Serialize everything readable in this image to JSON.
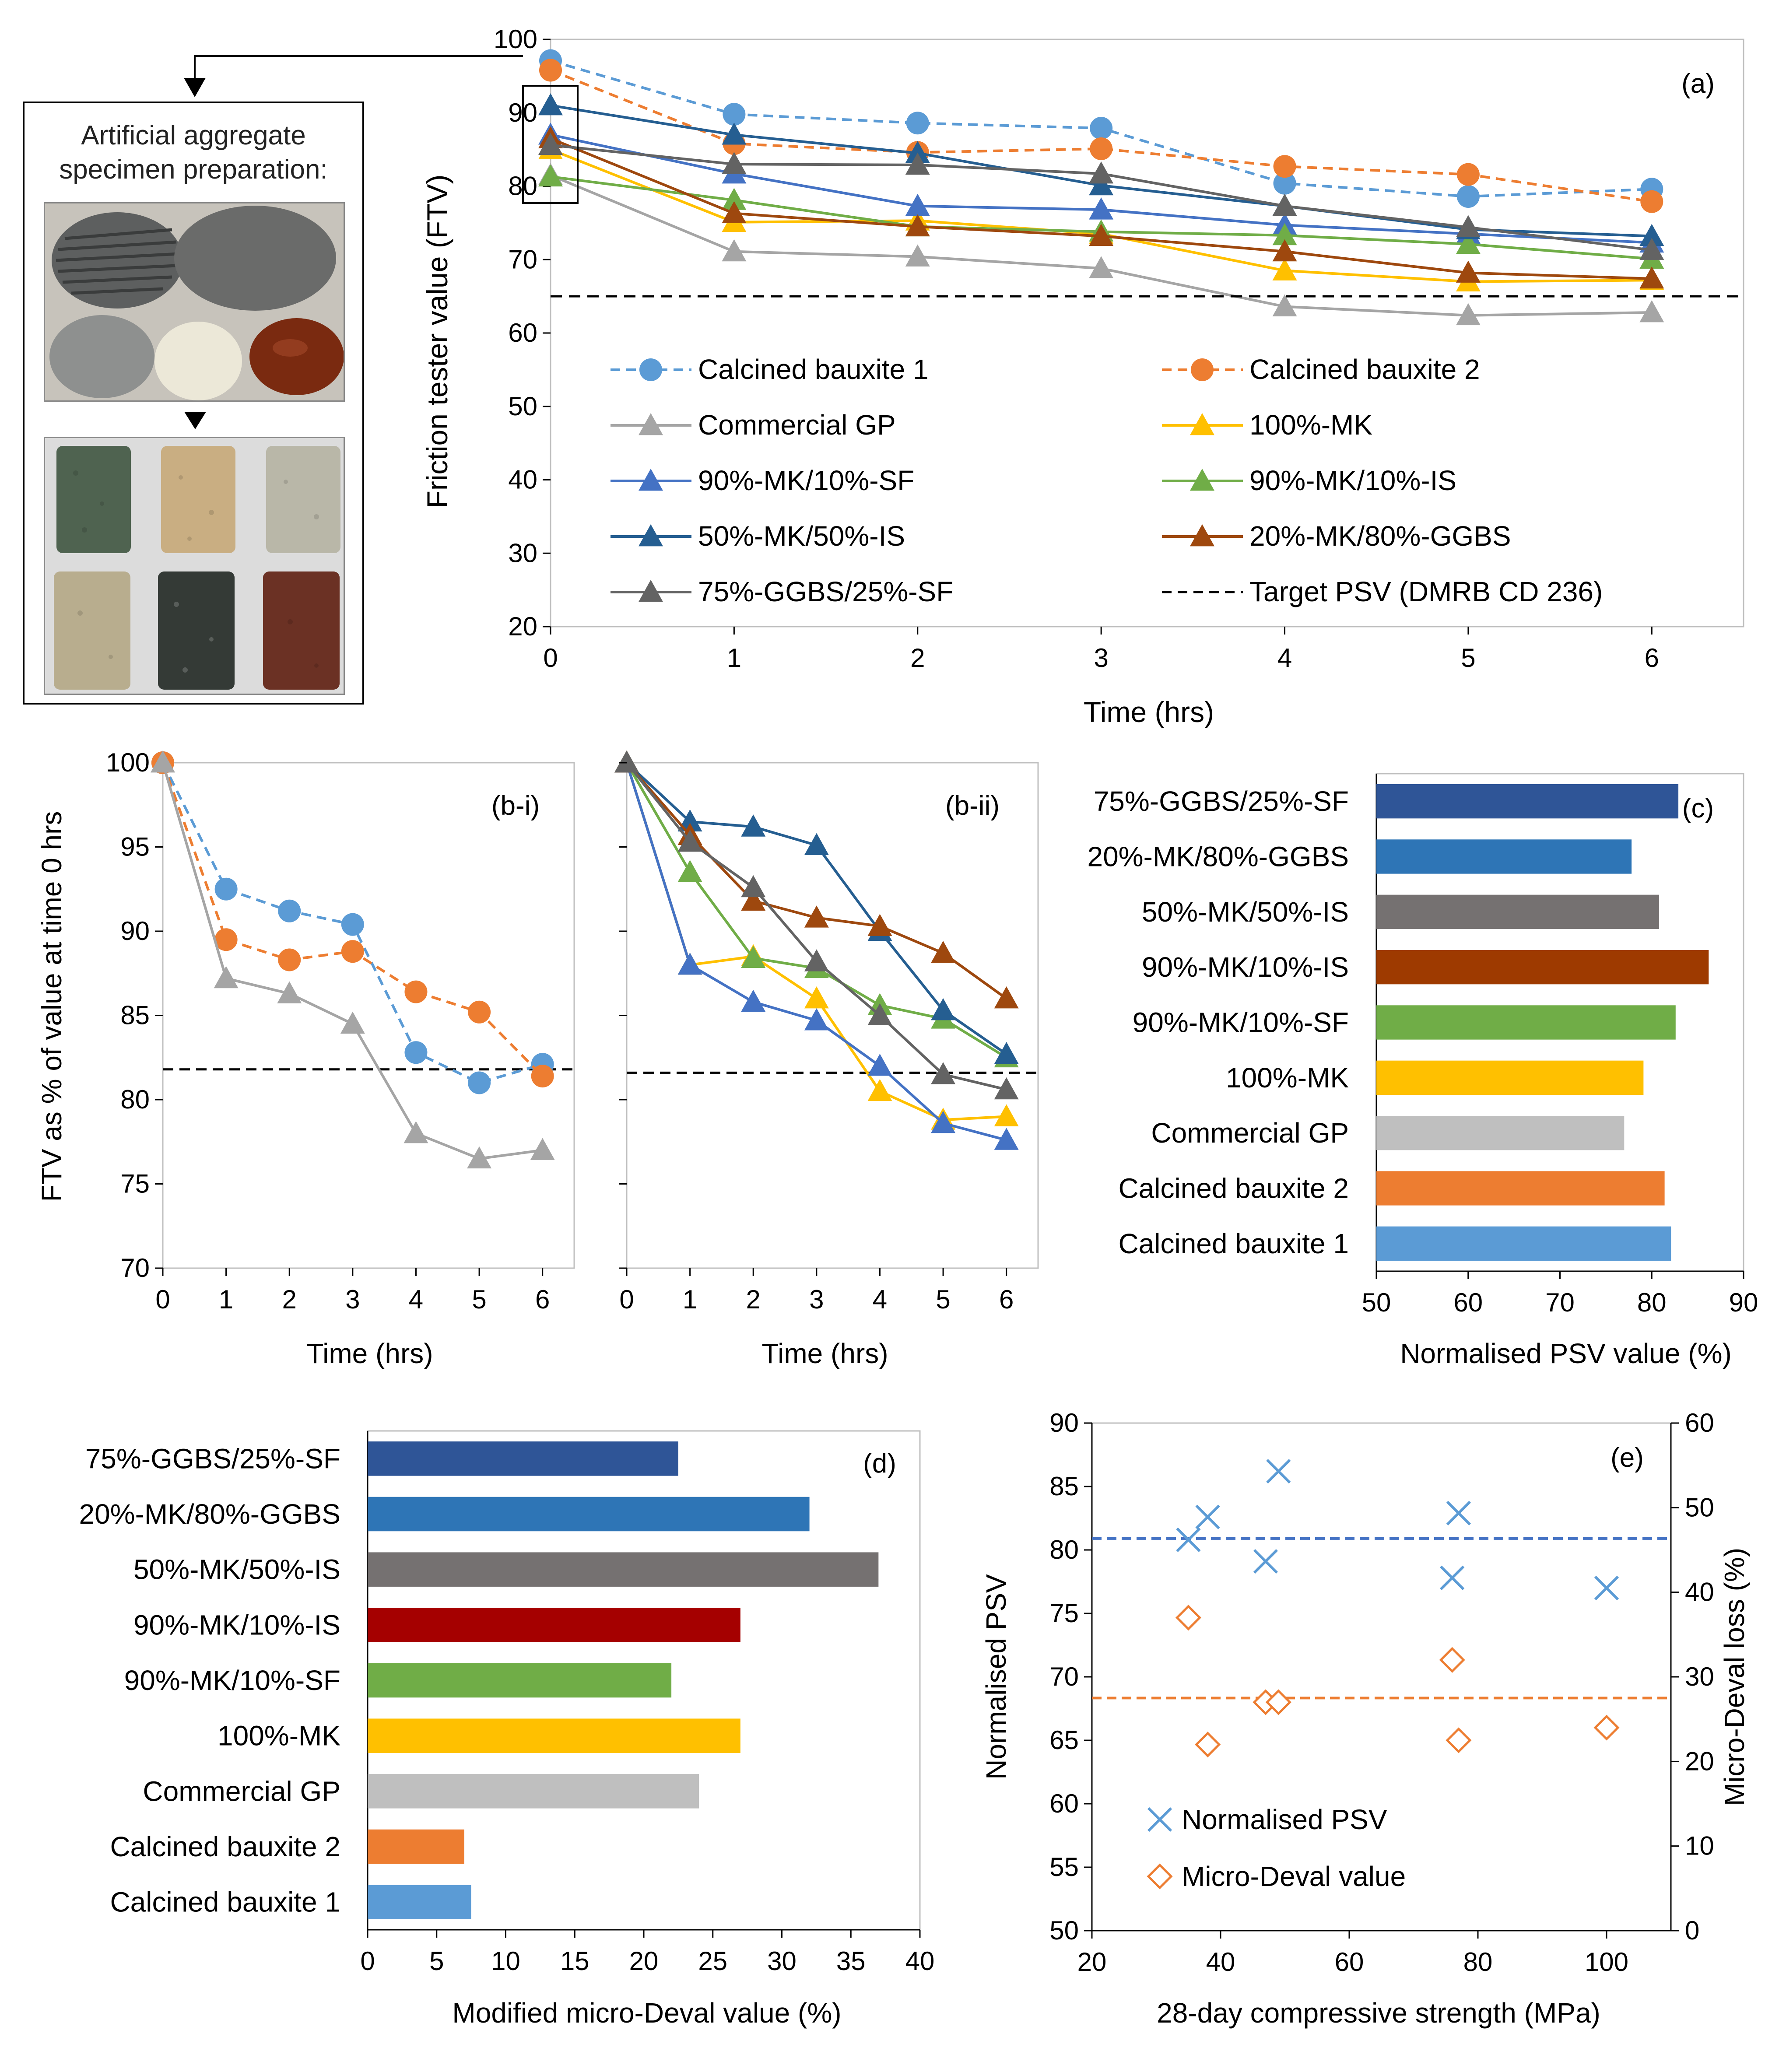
{
  "panel_a": {
    "label": "(a)",
    "xlabel": "Time (hrs)",
    "ylabel": "Friction tester value (FTV)",
    "xticks": [
      "0",
      "1",
      "2",
      "3",
      "4",
      "5",
      "6"
    ],
    "yticks": [
      "20",
      "30",
      "40",
      "50",
      "60",
      "70",
      "80",
      "90",
      "100"
    ]
  },
  "photo_panel": {
    "title_line1": "Artificial aggregate",
    "title_line2": "specimen preparation:"
  },
  "panel_b_i": {
    "label": "(b-i)",
    "xlabel": "Time (hrs)",
    "ylabel": "FTV as % of value at time 0 hrs",
    "xticks": [
      "0",
      "1",
      "2",
      "3",
      "4",
      "5",
      "6"
    ],
    "yticks": [
      "70",
      "75",
      "80",
      "85",
      "90",
      "95",
      "100"
    ]
  },
  "panel_b_ii": {
    "label": "(b-ii)",
    "xlabel": "Time (hrs)",
    "xticks": [
      "0",
      "1",
      "2",
      "3",
      "4",
      "5",
      "6"
    ]
  },
  "panel_c": {
    "label": "(c)",
    "xlabel": "Normalised PSV value (%)",
    "xticks": [
      "50",
      "60",
      "70",
      "80",
      "90"
    ]
  },
  "panel_d": {
    "label": "(d)",
    "xlabel": "Modified micro-Deval value (%)",
    "xticks": [
      "0",
      "5",
      "10",
      "15",
      "20",
      "25",
      "30",
      "35",
      "40"
    ]
  },
  "panel_e": {
    "label": "(e)",
    "xlabel": "28-day compressive strength (MPa)",
    "ylabel_left": "Normalised PSV",
    "ylabel_right": "Micro-Deval loss (%)",
    "xticks": [
      "20",
      "40",
      "60",
      "80",
      "100"
    ],
    "yticks_left": [
      "50",
      "55",
      "60",
      "65",
      "70",
      "75",
      "80",
      "85",
      "90"
    ],
    "yticks_right": [
      "0",
      "10",
      "20",
      "30",
      "40",
      "50",
      "60"
    ],
    "legend": [
      "Normalised PSV",
      "Micro-Deval value"
    ]
  },
  "colors": {
    "cb1": "#5b9bd5",
    "cb2": "#ed7d31",
    "gp": "#a5a5a5",
    "mk": "#ffc000",
    "mksf": "#4472c4",
    "mkis": "#70ad47",
    "mk50is": "#255e91",
    "mkggbs": "#9e480e",
    "ggbssf": "#636363",
    "bar_ggbssf": "#2f5597",
    "bar_mkggbs": "#2e75b6",
    "bar_mk50is": "#757171",
    "bar_mkis_c": "#9e3a00",
    "bar_mkis_d": "#a50000",
    "bar_mksf": "#70ad47",
    "bar_mk": "#ffc000",
    "bar_gp": "#bfbfbf",
    "bar_cb2": "#ed7d31",
    "bar_cb1": "#5b9bd5"
  },
  "chart_data": [
    {
      "id": "a",
      "type": "line",
      "title": "(a)",
      "xlabel": "Time (hrs)",
      "ylabel": "Friction tester value (FTV)",
      "xlim": [
        0,
        6.5
      ],
      "ylim": [
        20,
        100
      ],
      "x": [
        0,
        1,
        2,
        3,
        4,
        5,
        6
      ],
      "series": [
        {
          "name": "Calcined bauxite 1",
          "key": "cb1",
          "style": "dashed",
          "marker": "circle",
          "values": [
            97.1,
            89.8,
            88.6,
            87.9,
            80.4,
            78.6,
            79.6
          ]
        },
        {
          "name": "Calcined bauxite 2",
          "key": "cb2",
          "style": "dashed",
          "marker": "circle",
          "values": [
            95.8,
            85.8,
            84.6,
            85.1,
            82.7,
            81.6,
            77.9
          ]
        },
        {
          "name": "Commercial GP",
          "key": "gp",
          "style": "solid",
          "marker": "triangle",
          "values": [
            81.5,
            71.1,
            70.4,
            68.8,
            63.6,
            62.4,
            62.8
          ]
        },
        {
          "name": "100%-MK",
          "key": "mk",
          "style": "solid",
          "marker": "triangle",
          "values": [
            85.0,
            75.1,
            75.3,
            73.5,
            68.5,
            67.0,
            67.2
          ]
        },
        {
          "name": "90%-MK/10%-SF",
          "key": "mksf",
          "style": "solid",
          "marker": "triangle",
          "values": [
            87.0,
            81.7,
            77.3,
            76.8,
            74.7,
            73.5,
            72.3
          ]
        },
        {
          "name": "90%-MK/10%-IS",
          "key": "mkis",
          "style": "solid",
          "marker": "triangle",
          "values": [
            81.3,
            78.1,
            74.5,
            73.8,
            73.3,
            72.1,
            70.1
          ]
        },
        {
          "name": "50%-MK/50%-IS",
          "key": "mk50is",
          "style": "solid",
          "marker": "triangle",
          "values": [
            91.0,
            87.0,
            84.5,
            80.1,
            77.3,
            74.1,
            73.2
          ]
        },
        {
          "name": "20%-MK/80%-GGBS",
          "key": "mkggbs",
          "style": "solid",
          "marker": "triangle",
          "values": [
            86.5,
            76.3,
            74.5,
            73.2,
            71.1,
            68.2,
            67.4
          ]
        },
        {
          "name": "75%-GGBS/25%-SF",
          "key": "ggbssf",
          "style": "solid",
          "marker": "triangle",
          "values": [
            85.6,
            83.0,
            82.9,
            81.7,
            77.3,
            74.4,
            71.3
          ]
        },
        {
          "name": "Target PSV (DMRB CD 236)",
          "key": "target",
          "style": "dashed",
          "marker": "none",
          "values": [
            65,
            65,
            65,
            65,
            65,
            65,
            65
          ]
        }
      ]
    },
    {
      "id": "b-i",
      "type": "line",
      "title": "(b-i)",
      "xlabel": "Time (hrs)",
      "ylabel": "FTV as % of value at time 0 hrs",
      "xlim": [
        0,
        6.5
      ],
      "ylim": [
        70,
        100
      ],
      "x": [
        0,
        1,
        2,
        3,
        4,
        5,
        6
      ],
      "reference": 81.8,
      "series": [
        {
          "name": "Calcined bauxite 1",
          "key": "cb1",
          "style": "dashed",
          "marker": "circle",
          "values": [
            100,
            92.5,
            91.2,
            90.4,
            82.8,
            81.0,
            82.1
          ]
        },
        {
          "name": "Calcined bauxite 2",
          "key": "cb2",
          "style": "dashed",
          "marker": "circle",
          "values": [
            100,
            89.5,
            88.3,
            88.8,
            86.4,
            85.2,
            81.4
          ]
        },
        {
          "name": "Commercial GP",
          "key": "gp",
          "style": "solid",
          "marker": "triangle",
          "values": [
            100,
            87.2,
            86.3,
            84.5,
            78.0,
            76.5,
            77.0
          ]
        }
      ]
    },
    {
      "id": "b-ii",
      "type": "line",
      "title": "(b-ii)",
      "xlabel": "Time (hrs)",
      "xlim": [
        0,
        6.5
      ],
      "ylim": [
        70,
        100
      ],
      "x": [
        0,
        1,
        2,
        3,
        4,
        5,
        6
      ],
      "reference": 81.6,
      "series": [
        {
          "name": "100%-MK",
          "key": "mk",
          "style": "solid",
          "marker": "triangle",
          "values": [
            100,
            88.0,
            88.5,
            86.0,
            80.5,
            78.8,
            79.0
          ]
        },
        {
          "name": "90%-MK/10%-SF",
          "key": "mksf",
          "style": "solid",
          "marker": "triangle",
          "values": [
            100,
            88.0,
            85.8,
            84.7,
            82.0,
            78.6,
            77.6
          ]
        },
        {
          "name": "90%-MK/10%-IS",
          "key": "mkis",
          "style": "solid",
          "marker": "triangle",
          "values": [
            100,
            93.5,
            88.4,
            87.8,
            85.6,
            84.8,
            82.5
          ]
        },
        {
          "name": "50%-MK/50%-IS",
          "key": "mk50is",
          "style": "solid",
          "marker": "triangle",
          "values": [
            100,
            96.5,
            96.2,
            95.1,
            90.0,
            85.3,
            82.7
          ]
        },
        {
          "name": "20%-MK/80%-GGBS",
          "key": "mkggbs",
          "style": "solid",
          "marker": "triangle",
          "values": [
            100,
            95.7,
            91.8,
            90.8,
            90.3,
            88.7,
            86.0
          ]
        },
        {
          "name": "75%-GGBS/25%-SF",
          "key": "ggbssf",
          "style": "solid",
          "marker": "triangle",
          "values": [
            100,
            95.3,
            92.6,
            88.2,
            85.0,
            81.5,
            80.6
          ]
        }
      ]
    },
    {
      "id": "c",
      "type": "bar",
      "orientation": "horizontal",
      "title": "(c)",
      "xlabel": "Normalised PSV value (%)",
      "xlim": [
        50,
        90
      ],
      "categories": [
        "75%-GGBS/25%-SF",
        "20%-MK/80%-GGBS",
        "50%-MK/50%-IS",
        "90%-MK/10%-IS",
        "90%-MK/10%-SF",
        "100%-MK",
        "Commercial GP",
        "Calcined bauxite 2",
        "Calcined bauxite 1"
      ],
      "values": [
        82.9,
        77.8,
        80.8,
        86.2,
        82.6,
        79.1,
        77.0,
        81.4,
        82.1
      ],
      "color_keys": [
        "bar_ggbssf",
        "bar_mkggbs",
        "bar_mk50is",
        "bar_mkis_c",
        "bar_mksf",
        "bar_mk",
        "bar_gp",
        "bar_cb2",
        "bar_cb1"
      ]
    },
    {
      "id": "d",
      "type": "bar",
      "orientation": "horizontal",
      "title": "(d)",
      "xlabel": "Modified micro-Deval value (%)",
      "xlim": [
        0,
        40
      ],
      "categories": [
        "75%-GGBS/25%-SF",
        "20%-MK/80%-GGBS",
        "50%-MK/50%-IS",
        "90%-MK/10%-IS",
        "90%-MK/10%-SF",
        "100%-MK",
        "Commercial GP",
        "Calcined bauxite 2",
        "Calcined bauxite 1"
      ],
      "values": [
        22.5,
        32.0,
        37.0,
        27.0,
        22.0,
        27.0,
        24.0,
        7.0,
        7.5
      ],
      "color_keys": [
        "bar_ggbssf",
        "bar_mkggbs",
        "bar_mk50is",
        "bar_mkis_d",
        "bar_mksf",
        "bar_mk",
        "bar_gp",
        "bar_cb2",
        "bar_cb1"
      ]
    },
    {
      "id": "e",
      "type": "scatter",
      "title": "(e)",
      "xlabel": "28-day compressive strength (MPa)",
      "ylabel": "Normalised PSV",
      "ylabel_right": "Micro-Deval loss (%)",
      "xlim": [
        20,
        110
      ],
      "ylim": [
        50,
        90
      ],
      "ylim_right": [
        0,
        60
      ],
      "series": [
        {
          "name": "Normalised PSV",
          "key": "mksf",
          "axis": "left",
          "marker": "x",
          "points": [
            [
              35,
              80.8
            ],
            [
              38,
              82.6
            ],
            [
              47,
              79.1
            ],
            [
              49,
              86.2
            ],
            [
              76,
              77.8
            ],
            [
              77,
              82.9
            ],
            [
              100,
              77.0
            ]
          ],
          "mean": 80.9
        },
        {
          "name": "Micro-Deval value",
          "key": "cb2",
          "axis": "right",
          "marker": "diamond",
          "points": [
            [
              35,
              37.0
            ],
            [
              38,
              22.0
            ],
            [
              47,
              27.0
            ],
            [
              49,
              27.0
            ],
            [
              76,
              32.0
            ],
            [
              77,
              22.5
            ],
            [
              100,
              24.0
            ]
          ],
          "mean": 27.5
        }
      ]
    }
  ]
}
